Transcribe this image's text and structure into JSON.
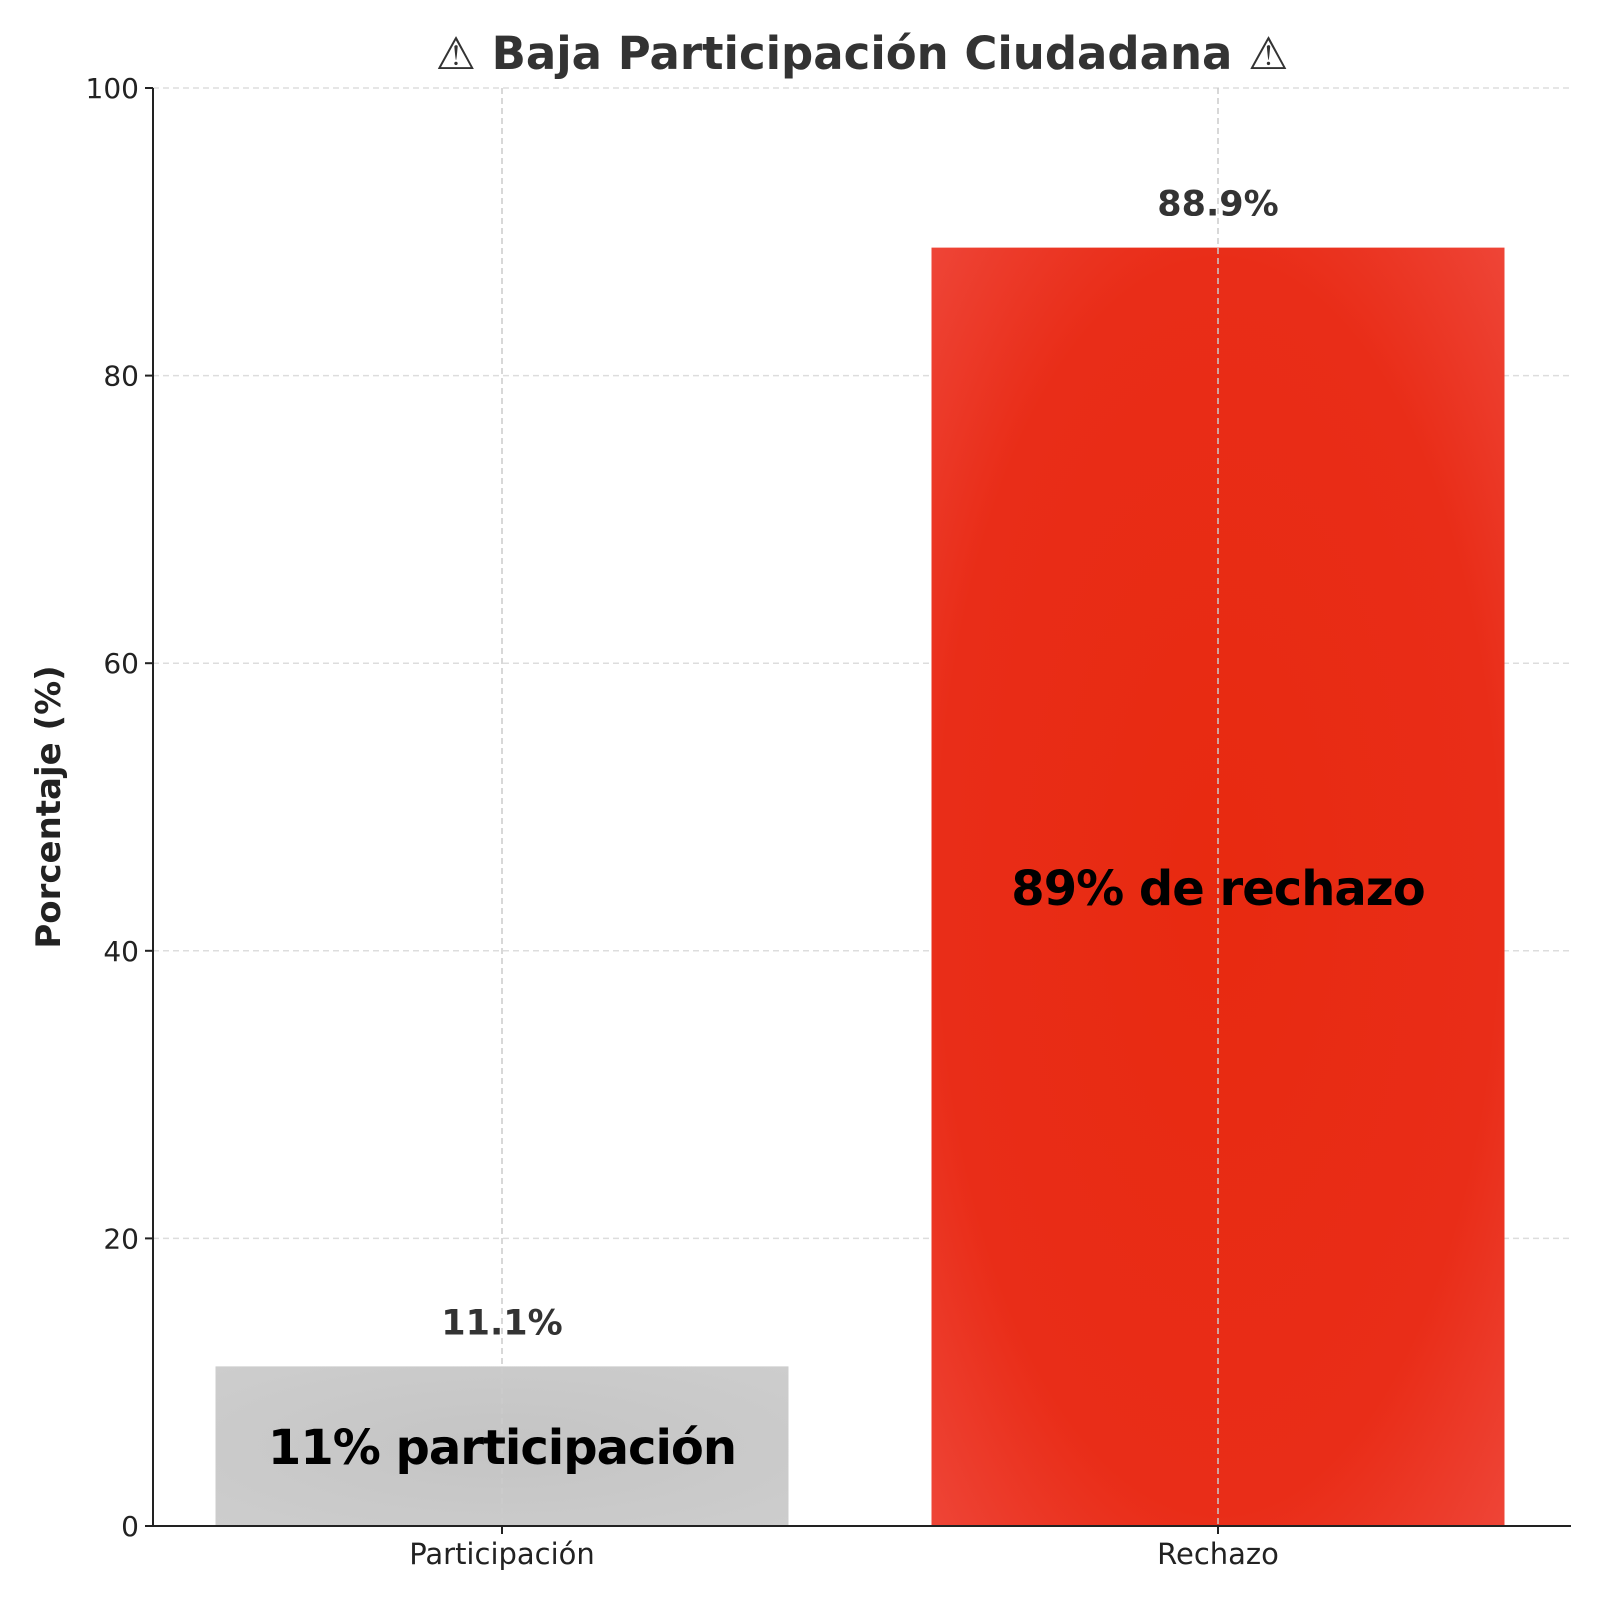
{
  "chart_data": {
    "type": "bar",
    "title": "⚠ Baja Participación Ciudadana ⚠",
    "xlabel": "",
    "ylabel": "Porcentaje (%)",
    "ylim": [
      0,
      100
    ],
    "yticks": [
      "0",
      "20",
      "40",
      "60",
      "80",
      "100"
    ],
    "ytick_values": [
      0,
      20,
      40,
      60,
      80,
      100
    ],
    "grid": true,
    "categories": [
      "Participación",
      "Rechazo"
    ],
    "values": [
      11.1,
      88.9
    ],
    "value_labels": [
      "11.1%",
      "88.9%"
    ],
    "inner_labels": [
      "11% participación",
      "89% de rechazo"
    ],
    "colors": [
      "#c8c8c8",
      "#e82a16"
    ]
  }
}
